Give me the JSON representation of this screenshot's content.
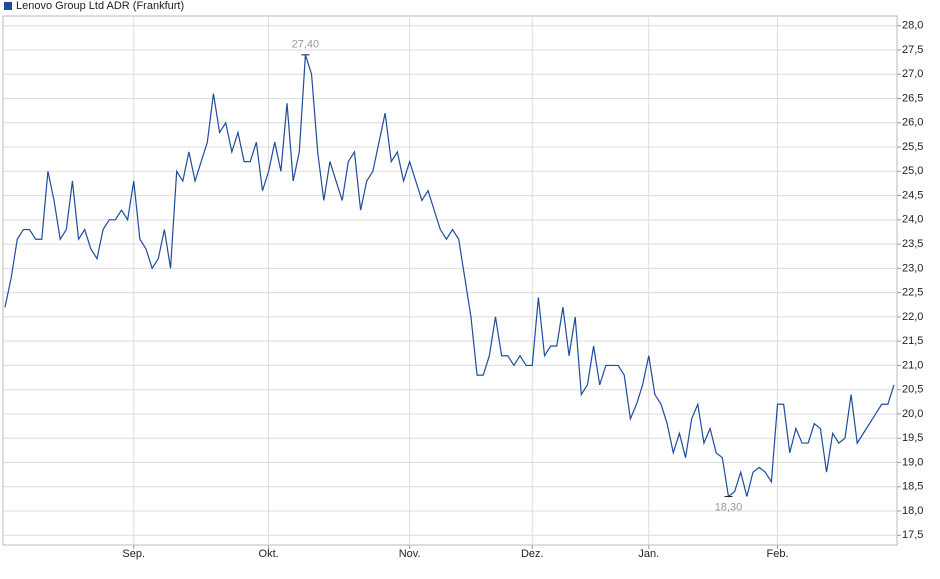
{
  "chart_data": {
    "type": "line",
    "legend": "top-left",
    "series": [
      {
        "name": "Lenovo Group Ltd ADR (Frankfurt)",
        "color": "#1f4c9c",
        "values": [
          22.2,
          22.8,
          23.6,
          23.8,
          23.8,
          23.6,
          23.6,
          25.0,
          24.4,
          23.6,
          23.8,
          24.8,
          23.6,
          23.8,
          23.4,
          23.2,
          23.8,
          24.0,
          24.0,
          24.2,
          24.0,
          24.8,
          23.6,
          23.4,
          23.0,
          23.2,
          23.8,
          23.0,
          25.0,
          24.8,
          25.4,
          24.8,
          25.2,
          25.6,
          26.6,
          25.8,
          26.0,
          25.4,
          25.8,
          25.2,
          25.2,
          25.6,
          24.6,
          25.0,
          25.6,
          25.0,
          26.4,
          24.8,
          25.4,
          27.4,
          27.0,
          25.4,
          24.4,
          25.2,
          24.8,
          24.4,
          25.2,
          25.4,
          24.2,
          24.8,
          25.0,
          25.6,
          26.2,
          25.2,
          25.4,
          24.8,
          25.2,
          24.8,
          24.4,
          24.6,
          24.2,
          23.8,
          23.6,
          23.8,
          23.6,
          22.8,
          22.0,
          20.8,
          20.8,
          21.2,
          22.0,
          21.2,
          21.2,
          21.0,
          21.2,
          21.0,
          21.0,
          22.4,
          21.2,
          21.4,
          21.4,
          22.2,
          21.2,
          22.0,
          20.4,
          20.6,
          21.4,
          20.6,
          21.0,
          21.0,
          21.0,
          20.8,
          19.9,
          20.2,
          20.6,
          21.2,
          20.4,
          20.2,
          19.8,
          19.2,
          19.6,
          19.1,
          19.9,
          20.2,
          19.4,
          19.7,
          19.2,
          19.1,
          18.3,
          18.4,
          18.8,
          18.3,
          18.8,
          18.9,
          18.8,
          18.6,
          20.2,
          20.2,
          19.2,
          19.7,
          19.4,
          19.4,
          19.8,
          19.7,
          18.8,
          19.6,
          19.4,
          19.5,
          20.4,
          19.4,
          19.6,
          19.8,
          20.0,
          20.2,
          20.2,
          20.6
        ]
      }
    ],
    "xlim": [
      0,
      145
    ],
    "xticks": [
      {
        "value": 21,
        "label": "Sep."
      },
      {
        "value": 43,
        "label": "Okt."
      },
      {
        "value": 66,
        "label": "Nov."
      },
      {
        "value": 86,
        "label": "Dez."
      },
      {
        "value": 105,
        "label": "Jan."
      },
      {
        "value": 126,
        "label": "Feb."
      }
    ],
    "ylim": [
      17.3,
      28.2
    ],
    "yticks": [
      {
        "value": 17.5,
        "label": "17,5"
      },
      {
        "value": 18,
        "label": "18,0"
      },
      {
        "value": 18.5,
        "label": "18,5"
      },
      {
        "value": 19,
        "label": "19,0"
      },
      {
        "value": 19.5,
        "label": "19,5"
      },
      {
        "value": 20,
        "label": "20,0"
      },
      {
        "value": 20.5,
        "label": "20,5"
      },
      {
        "value": 21,
        "label": "21,0"
      },
      {
        "value": 21.5,
        "label": "21,5"
      },
      {
        "value": 22,
        "label": "22,0"
      },
      {
        "value": 22.5,
        "label": "22,5"
      },
      {
        "value": 23,
        "label": "23,0"
      },
      {
        "value": 23.5,
        "label": "23,5"
      },
      {
        "value": 24,
        "label": "24,0"
      },
      {
        "value": 24.5,
        "label": "24,5"
      },
      {
        "value": 25,
        "label": "25,0"
      },
      {
        "value": 25.5,
        "label": "25,5"
      },
      {
        "value": 26,
        "label": "26,0"
      },
      {
        "value": 26.5,
        "label": "26,5"
      },
      {
        "value": 27,
        "label": "27,0"
      },
      {
        "value": 27.5,
        "label": "27,5"
      },
      {
        "value": 28,
        "label": "28,0"
      }
    ],
    "grid": true,
    "annotations": [
      {
        "label": "27,40",
        "x": 49,
        "value": 27.4,
        "position": "above"
      },
      {
        "label": "18,30",
        "x": 118,
        "value": 18.3,
        "position": "below"
      }
    ]
  }
}
